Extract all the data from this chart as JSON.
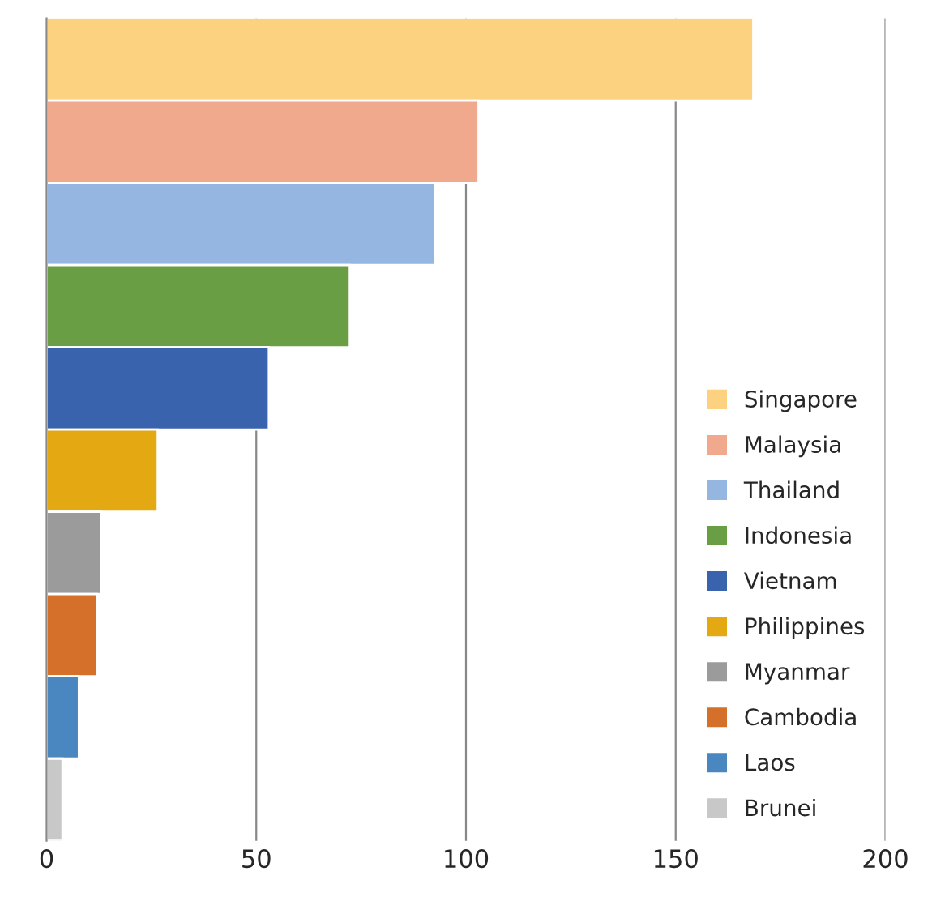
{
  "chart_data": {
    "type": "bar",
    "orientation": "horizontal",
    "categories": [
      null,
      null,
      null,
      null,
      null,
      null,
      null,
      null,
      null,
      null
    ],
    "series": [
      {
        "name": "Singapore",
        "color": "#fcd17f",
        "values": [
          168.5,
          null,
          null,
          null,
          null,
          null,
          null,
          null,
          null,
          null
        ]
      },
      {
        "name": "Malaysia",
        "color": "#f0a98d",
        "values": [
          null,
          103,
          null,
          null,
          null,
          null,
          null,
          null,
          null,
          null
        ]
      },
      {
        "name": "Thailand",
        "color": "#94b6e0",
        "values": [
          null,
          null,
          92.7,
          null,
          null,
          null,
          null,
          null,
          null,
          null
        ]
      },
      {
        "name": "Indonesia",
        "color": "#6a9e45",
        "values": [
          null,
          null,
          null,
          72.3,
          null,
          null,
          null,
          null,
          null,
          null
        ]
      },
      {
        "name": "Vietnam",
        "color": "#3a63ad",
        "values": [
          null,
          null,
          null,
          null,
          53,
          null,
          null,
          null,
          null,
          null
        ]
      },
      {
        "name": "Philippines",
        "color": "#e3a812",
        "values": [
          null,
          null,
          null,
          null,
          null,
          26.5,
          null,
          null,
          null,
          null
        ]
      },
      {
        "name": "Myanmar",
        "color": "#9b9b9b",
        "values": [
          null,
          null,
          null,
          null,
          null,
          null,
          13,
          null,
          null,
          null
        ]
      },
      {
        "name": "Cambodia",
        "color": "#d4702a",
        "values": [
          null,
          null,
          null,
          null,
          null,
          null,
          null,
          12,
          null,
          null
        ]
      },
      {
        "name": "Laos",
        "color": "#4a86c0",
        "values": [
          null,
          null,
          null,
          null,
          null,
          null,
          null,
          null,
          7.7,
          null
        ]
      },
      {
        "name": "Brunei",
        "color": "#c8c8c8",
        "values": [
          null,
          null,
          null,
          null,
          null,
          null,
          null,
          null,
          null,
          3.8
        ]
      }
    ],
    "xlim": [
      0,
      200
    ],
    "xticks": [
      0,
      50,
      100,
      150,
      200
    ],
    "grid": "x",
    "legend": "bottom right"
  }
}
